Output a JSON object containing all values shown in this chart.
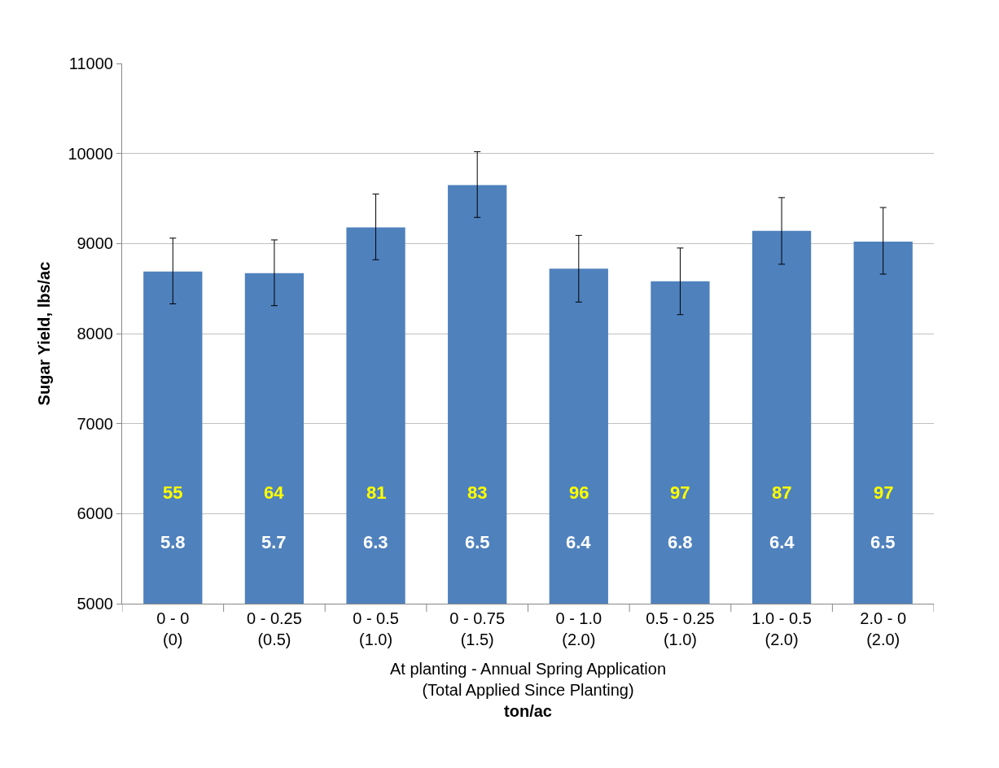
{
  "chart_data": {
    "type": "bar",
    "ylabel": "Sugar Yield, lbs/ac",
    "xlabel": "At planting - Annual Spring Application\n(Total Applied Since Planting)\nton/ac",
    "categories": [
      "0 - 0\n(0)",
      "0 - 0.25\n(0.5)",
      "0 - 0.5\n(1.0)",
      "0 - 0.75\n(1.5)",
      "0 - 1.0\n(2.0)",
      "0.5 - 0.25\n(1.0)",
      "1.0 - 0.5\n(2.0)",
      "2.0 - 0\n(2.0)"
    ],
    "values": [
      8690,
      8670,
      9180,
      9650,
      8720,
      8580,
      9140,
      9020
    ],
    "errors": [
      [
        8330,
        9060
      ],
      [
        8310,
        9040
      ],
      [
        8820,
        9550
      ],
      [
        9290,
        10020
      ],
      [
        8350,
        9090
      ],
      [
        8210,
        8950
      ],
      [
        8770,
        9510
      ],
      [
        8660,
        9400
      ]
    ],
    "color": "#4f81bd",
    "ylim": [
      5000,
      11000
    ],
    "yticks": [
      5000,
      6000,
      7000,
      8000,
      9000,
      10000,
      11000
    ],
    "grid": "y",
    "legend": false,
    "annotations": [
      "55",
      "64",
      "81",
      "83",
      "96",
      "97",
      "87",
      "97",
      "5.8",
      "5.7",
      "6.3",
      "6.5",
      "6.4",
      "6.8",
      "6.4",
      "6.5"
    ]
  }
}
